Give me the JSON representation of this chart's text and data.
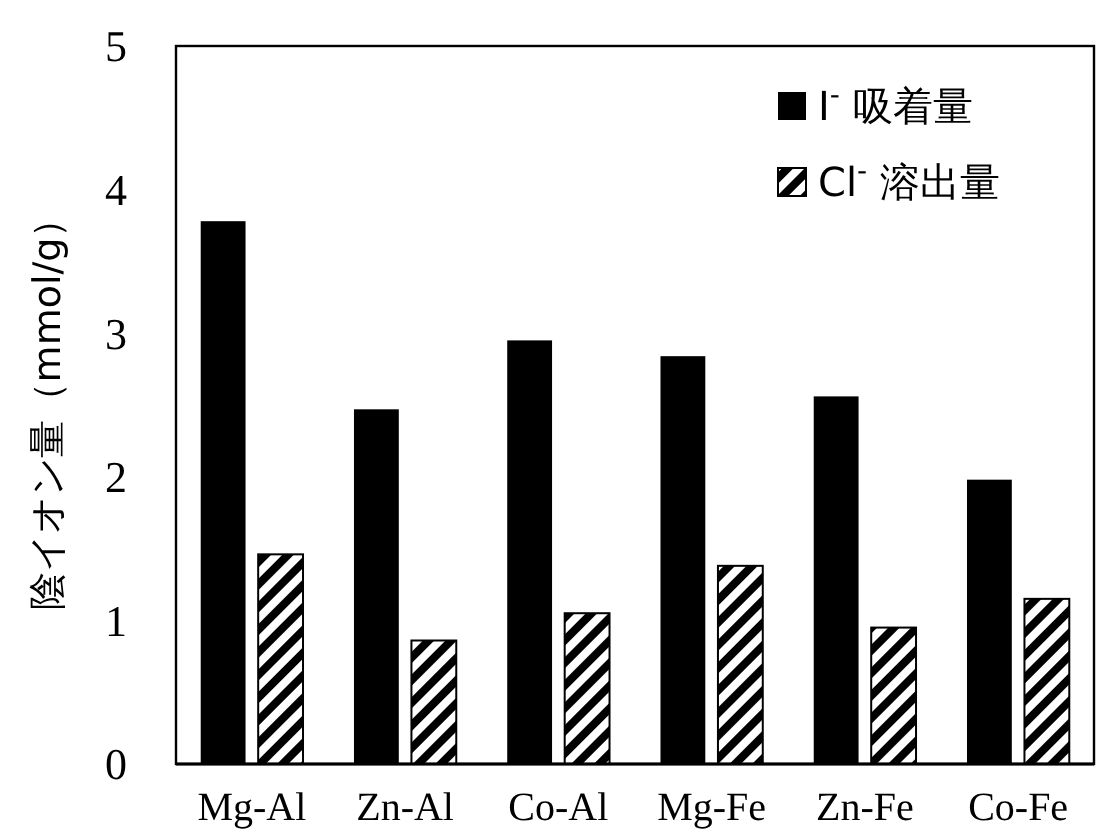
{
  "chart_data": {
    "type": "bar",
    "ylabel": "陰イオン量（mmol/g）",
    "categories": [
      "Mg-Al",
      "Zn-Al",
      "Co-Al",
      "Mg-Fe",
      "Zn-Fe",
      "Co-Fe"
    ],
    "series": [
      {
        "name": "I$^{-}$ 吸着量",
        "color": "#000000",
        "values": [
          3.78,
          2.47,
          2.95,
          2.84,
          2.56,
          1.98
        ]
      },
      {
        "name": "Cl$^{-}$ 溶出量",
        "color": "#000000",
        "values": [
          1.46,
          0.86,
          1.05,
          1.38,
          0.95,
          1.15
        ]
      }
    ],
    "ylim": [
      0,
      5
    ],
    "yticks": [
      0,
      1,
      2,
      3,
      4,
      5
    ],
    "grid": false,
    "legend": "top right"
  }
}
